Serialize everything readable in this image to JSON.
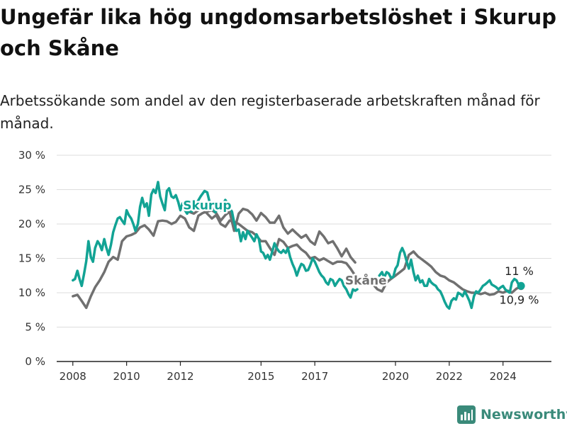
{
  "header": {
    "title": "Ungefär lika hög ungdomsarbetslöshet i Skurup och Skåne",
    "subtitle": "Arbetssökande som andel av den registerbaserade arbetskraften månad för månad."
  },
  "brand": {
    "name": "Newsworthy",
    "icon": "bar-chart-icon"
  },
  "colors": {
    "skurup": "#12a394",
    "skane": "#707070",
    "grid": "#dddddd",
    "axis": "#222222"
  },
  "chart_data": {
    "type": "line",
    "title": "Ungefär lika hög ungdomsarbetslöshet i Skurup och Skåne",
    "xlabel": "",
    "ylabel": "",
    "ylim": [
      0,
      30
    ],
    "xlim": [
      2007.4,
      2025.8
    ],
    "y_ticks": [
      0,
      5,
      10,
      15,
      20,
      25,
      30
    ],
    "y_tick_labels": [
      "0 %",
      "5 %",
      "10 %",
      "15 %",
      "20 %",
      "25 %",
      "30 %"
    ],
    "x_ticks": [
      2008,
      2010,
      2012,
      2015,
      2017,
      2020,
      2022,
      2024
    ],
    "x_tick_labels": [
      "2008",
      "2010",
      "2012",
      "2015",
      "2017",
      "2020",
      "2022",
      "2024"
    ],
    "series": [
      {
        "name": "Skåne",
        "label": "Skåne",
        "end_value": 10.9,
        "end_label": "10,9 %",
        "segments": [
          {
            "x": [
              2008.0,
              2008.17,
              2008.33,
              2008.5,
              2008.67,
              2008.83,
              2009.0,
              2009.17,
              2009.33,
              2009.5,
              2009.67,
              2009.83,
              2010.0,
              2010.17,
              2010.33,
              2010.5,
              2010.67,
              2010.83,
              2011.0,
              2011.17,
              2011.33,
              2011.5,
              2011.67,
              2011.83,
              2012.0,
              2012.17,
              2012.33,
              2012.5,
              2012.67,
              2012.83,
              2013.0,
              2013.17,
              2013.33,
              2013.5,
              2013.67,
              2013.83,
              2014.0,
              2014.17,
              2014.33,
              2014.5,
              2014.67,
              2014.83,
              2015.0,
              2015.17,
              2015.33,
              2015.5,
              2015.67,
              2015.83,
              2016.0,
              2016.17,
              2016.33,
              2016.5,
              2016.67,
              2016.83,
              2017.0,
              2017.17,
              2017.33,
              2017.5,
              2017.67,
              2017.83,
              2018.0,
              2018.17,
              2018.33,
              2018.5
            ],
            "y": [
              9.5,
              9.7,
              8.8,
              7.8,
              9.5,
              10.8,
              11.8,
              13.0,
              14.5,
              15.2,
              14.8,
              17.5,
              18.2,
              18.4,
              18.7,
              19.5,
              19.8,
              19.2,
              18.3,
              20.4,
              20.5,
              20.4,
              20.0,
              20.3,
              21.2,
              20.8,
              19.5,
              19.0,
              21.2,
              21.6,
              21.8,
              22.0,
              21.6,
              20.5,
              21.3,
              21.8,
              19.0,
              21.5,
              22.2,
              22.0,
              21.4,
              20.5,
              21.6,
              21.0,
              20.2,
              20.2,
              21.2,
              19.5,
              18.6,
              19.2,
              18.6,
              18.0,
              18.4,
              17.5,
              17.0,
              18.9,
              18.2,
              17.2,
              17.5,
              16.5,
              15.3,
              16.4,
              15.2,
              14.4
            ]
          },
          {
            "x": [
              2012.3,
              2012.5,
              2012.67,
              2012.83,
              2013.0,
              2013.17,
              2013.33,
              2013.5,
              2013.67,
              2013.83,
              2014.0,
              2014.17,
              2014.33,
              2014.5,
              2014.67,
              2014.83,
              2015.0,
              2015.17,
              2015.33,
              2015.5,
              2015.67,
              2015.83,
              2016.0,
              2016.17,
              2016.33,
              2016.5,
              2016.67,
              2016.83,
              2017.0,
              2017.17,
              2017.33,
              2017.5,
              2017.67,
              2017.83,
              2018.0,
              2018.17,
              2018.33,
              2018.5,
              2018.67,
              2018.83,
              2019.0,
              2019.17,
              2019.33,
              2019.5,
              2019.67,
              2019.83,
              2020.0,
              2020.17,
              2020.33,
              2020.5,
              2020.67,
              2020.83,
              2021.0,
              2021.17,
              2021.33,
              2021.5,
              2021.67,
              2021.83,
              2022.0,
              2022.17,
              2022.33,
              2022.5,
              2022.67,
              2022.83,
              2023.0,
              2023.17,
              2023.33,
              2023.5,
              2023.67,
              2023.83,
              2024.0,
              2024.17,
              2024.33,
              2024.5,
              2024.67
            ],
            "y": [
              21.8,
              21.5,
              22.0,
              22.2,
              21.5,
              20.8,
              21.3,
              20.0,
              19.6,
              20.5,
              20.3,
              20.0,
              19.5,
              19.0,
              18.8,
              18.3,
              17.5,
              17.5,
              16.5,
              15.5,
              17.8,
              17.4,
              16.5,
              16.8,
              17.0,
              16.3,
              15.8,
              15.0,
              15.2,
              14.7,
              15.0,
              14.6,
              14.2,
              14.5,
              14.5,
              14.3,
              13.5,
              12.5,
              12.0,
              11.8,
              11.6,
              11.2,
              10.5,
              10.2,
              11.5,
              12.0,
              12.5,
              13.0,
              13.5,
              15.5,
              16.0,
              15.3,
              14.8,
              14.3,
              13.8,
              13.0,
              12.5,
              12.3,
              11.8,
              11.5,
              11.0,
              10.5,
              10.2,
              10.0,
              10.0,
              9.8,
              10.0,
              9.7,
              9.8,
              10.2,
              10.0,
              10.3,
              10.0,
              10.6,
              10.9
            ]
          }
        ]
      },
      {
        "name": "Skurup",
        "label": "Skurup",
        "end_value": 11,
        "end_label": "11 %",
        "segments": [
          {
            "x": [
              2008.0,
              2008.08,
              2008.17,
              2008.25,
              2008.33,
              2008.42,
              2008.5,
              2008.58,
              2008.67,
              2008.75,
              2008.83,
              2008.92,
              2009.0,
              2009.08,
              2009.17,
              2009.25,
              2009.33,
              2009.42,
              2009.5,
              2009.58,
              2009.67,
              2009.75,
              2009.83,
              2009.92,
              2010.0,
              2010.08,
              2010.17,
              2010.25,
              2010.33,
              2010.42,
              2010.5,
              2010.58,
              2010.67,
              2010.75,
              2010.83,
              2010.92,
              2011.0,
              2011.08,
              2011.17,
              2011.25,
              2011.33,
              2011.42,
              2011.5,
              2011.58,
              2011.67,
              2011.75,
              2011.83,
              2011.92,
              2012.0,
              2012.08,
              2012.17,
              2012.25,
              2012.33,
              2012.42,
              2012.5
            ],
            "y": [
              11.8,
              12.0,
              13.2,
              12.0,
              11.0,
              12.8,
              14.6,
              17.5,
              15.2,
              14.5,
              16.5,
              17.5,
              17.0,
              16.2,
              17.8,
              16.5,
              15.5,
              17.0,
              18.8,
              19.8,
              20.8,
              21.0,
              20.5,
              20.0,
              22.0,
              21.3,
              20.8,
              20.0,
              19.0,
              20.0,
              22.5,
              23.8,
              22.5,
              23.0,
              21.2,
              24.3,
              25.0,
              24.5,
              26.1,
              24.0,
              23.0,
              22.0,
              24.8,
              25.2,
              24.0,
              23.8,
              24.2,
              23.2,
              22.0,
              23.0,
              22.0,
              21.5,
              22.0,
              21.8,
              22.3
            ]
          },
          {
            "x": [
              2012.6,
              2012.75,
              2012.9,
              2013.0,
              2013.1,
              2013.2,
              2013.3,
              2013.42,
              2013.5,
              2013.58,
              2013.67,
              2013.75,
              2013.83,
              2013.92,
              2014.0,
              2014.08,
              2014.17,
              2014.25,
              2014.33,
              2014.42,
              2014.5,
              2014.58,
              2014.67,
              2014.75,
              2014.83,
              2014.92,
              2015.0,
              2015.08,
              2015.17,
              2015.25,
              2015.33,
              2015.42,
              2015.5,
              2015.58,
              2015.67,
              2015.75,
              2015.83,
              2015.92,
              2016.0,
              2016.08,
              2016.17,
              2016.25,
              2016.33,
              2016.42,
              2016.5,
              2016.58,
              2016.67,
              2016.75,
              2016.83,
              2016.92,
              2017.0,
              2017.08,
              2017.17,
              2017.25,
              2017.33,
              2017.42,
              2017.5,
              2017.58,
              2017.67,
              2017.75,
              2017.83,
              2017.92,
              2018.0,
              2018.08,
              2018.17,
              2018.25,
              2018.33,
              2018.42,
              2018.5,
              2018.58
            ],
            "y": [
              23.0,
              24.0,
              24.8,
              24.6,
              23.0,
              22.2,
              21.7,
              22.5,
              22.0,
              22.8,
              23.5,
              23.0,
              22.3,
              21.8,
              20.2,
              19.0,
              19.2,
              17.5,
              18.8,
              17.8,
              19.0,
              18.5,
              18.0,
              17.5,
              18.5,
              17.8,
              16.0,
              15.8,
              15.0,
              15.5,
              14.8,
              16.0,
              17.2,
              16.5,
              16.0,
              15.8,
              16.2,
              15.8,
              16.5,
              15.2,
              14.2,
              13.5,
              12.5,
              13.5,
              14.2,
              14.0,
              13.2,
              13.3,
              14.0,
              15.0,
              14.5,
              13.8,
              13.0,
              12.5,
              12.2,
              11.5,
              11.2,
              12.0,
              11.8,
              11.0,
              11.5,
              12.0,
              11.8,
              11.0,
              10.5,
              9.8,
              9.3,
              10.5,
              10.3,
              10.5
            ]
          },
          {
            "x": [
              2019.4,
              2019.5,
              2019.58,
              2019.67,
              2019.75,
              2019.83,
              2019.92,
              2020.0,
              2020.08,
              2020.17,
              2020.25,
              2020.33,
              2020.42,
              2020.5,
              2020.58,
              2020.67,
              2020.75,
              2020.83,
              2020.92,
              2021.0,
              2021.08,
              2021.17,
              2021.25,
              2021.33,
              2021.42,
              2021.5,
              2021.58,
              2021.67,
              2021.75,
              2021.83,
              2021.92,
              2022.0,
              2022.08,
              2022.17,
              2022.25,
              2022.33,
              2022.42,
              2022.5,
              2022.58,
              2022.67,
              2022.75,
              2022.83,
              2022.92,
              2023.0,
              2023.08,
              2023.17,
              2023.25,
              2023.33,
              2023.42,
              2023.5,
              2023.58,
              2023.67,
              2023.75,
              2023.83,
              2023.92,
              2024.0,
              2024.08,
              2024.17,
              2024.25,
              2024.33,
              2024.42,
              2024.5,
              2024.58,
              2024.67
            ],
            "y": [
              12.5,
              13.0,
              12.2,
              13.0,
              12.8,
              12.2,
              12.3,
              13.5,
              14.0,
              15.8,
              16.5,
              15.8,
              14.5,
              13.5,
              14.8,
              13.0,
              11.8,
              12.5,
              11.5,
              11.8,
              11.0,
              11.0,
              12.0,
              11.5,
              11.2,
              11.0,
              10.5,
              10.2,
              9.5,
              8.7,
              8.0,
              7.7,
              8.8,
              9.2,
              9.0,
              10.0,
              9.8,
              9.5,
              10.2,
              9.5,
              8.8,
              7.8,
              9.5,
              10.2,
              10.0,
              10.5,
              11.0,
              11.2,
              11.5,
              11.8,
              11.2,
              11.0,
              10.8,
              10.5,
              10.8,
              11.0,
              10.5,
              10.2,
              10.0,
              11.5,
              12.0,
              11.8,
              11.2,
              11.0
            ]
          }
        ]
      }
    ]
  }
}
